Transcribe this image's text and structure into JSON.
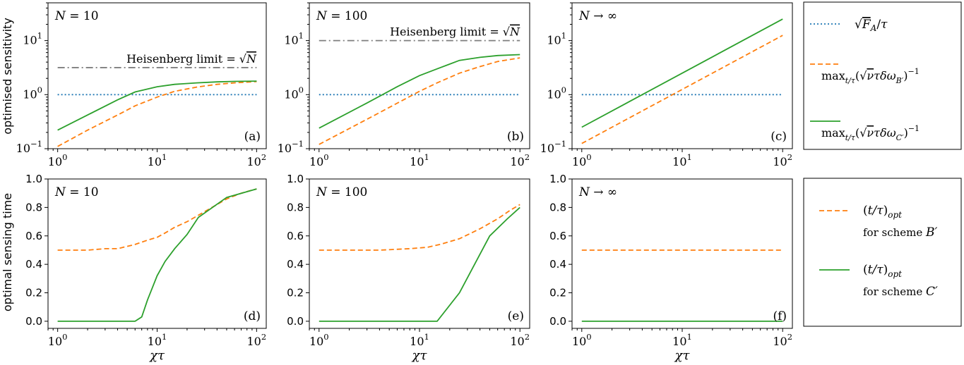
{
  "figure": {
    "ylabel_top": "optimised sensitivity",
    "ylabel_bottom": "optimal sensing time",
    "xlabel": "χτ"
  },
  "colors": {
    "blue": "#1f77b4",
    "orange": "#ff7f0e",
    "green": "#2ca02c",
    "gray": "#7f7f7f",
    "axis": "#000000"
  },
  "legend_top": [
    {
      "key": "sqrtFA",
      "label": "√F_A / τ",
      "style": "dotted",
      "color": "#1f77b4"
    },
    {
      "key": "B",
      "label": "max_{t/τ}(√ν τ δω_{B′})^{-1}",
      "style": "dashed",
      "color": "#ff7f0e"
    },
    {
      "key": "C",
      "label": "max_{t/τ}(√ν τ δω_{C′})^{-1}",
      "style": "solid",
      "color": "#2ca02c"
    }
  ],
  "legend_bottom": [
    {
      "key": "B",
      "line1": "(t/τ)_opt",
      "line2": "for scheme B′",
      "style": "dashed",
      "color": "#ff7f0e"
    },
    {
      "key": "C",
      "line1": "(t/τ)_opt",
      "line2": "for scheme C′",
      "style": "solid",
      "color": "#2ca02c"
    }
  ],
  "chart_data": [
    {
      "panel": "(a)",
      "title": "N = 10",
      "type": "line",
      "xscale": "log",
      "yscale": "log",
      "xlim": [
        0.8,
        125
      ],
      "ylim": [
        0.1,
        50
      ],
      "xticks": [
        1,
        10,
        100
      ],
      "xtick_labels": [
        "10^0",
        "10^1",
        "10^2"
      ],
      "yticks": [
        0.1,
        1,
        10
      ],
      "ytick_labels": [
        "10^-1",
        "10^0",
        "10^1"
      ],
      "ylabel": "optimised sensitivity",
      "hline": {
        "y": 3.162,
        "label": "Heisenberg limit = √N",
        "style": "dashdot"
      },
      "series": [
        {
          "name": "√F_A / τ",
          "style": "dotted",
          "color": "#1f77b4",
          "x": [
            1,
            100
          ],
          "y": [
            1,
            1
          ]
        },
        {
          "name": "scheme B′",
          "style": "dashed",
          "color": "#ff7f0e",
          "x": [
            1,
            2,
            4,
            6,
            10,
            15,
            25,
            40,
            60,
            100
          ],
          "y": [
            0.11,
            0.22,
            0.42,
            0.62,
            0.9,
            1.15,
            1.38,
            1.55,
            1.65,
            1.75
          ]
        },
        {
          "name": "scheme C′",
          "style": "solid",
          "color": "#2ca02c",
          "x": [
            1,
            2,
            4,
            6,
            10,
            15,
            25,
            40,
            60,
            100
          ],
          "y": [
            0.22,
            0.42,
            0.8,
            1.12,
            1.4,
            1.55,
            1.65,
            1.72,
            1.76,
            1.78
          ]
        }
      ]
    },
    {
      "panel": "(b)",
      "title": "N = 100",
      "type": "line",
      "xscale": "log",
      "yscale": "log",
      "xlim": [
        0.8,
        125
      ],
      "ylim": [
        0.1,
        50
      ],
      "xticks": [
        1,
        10,
        100
      ],
      "xtick_labels": [
        "10^0",
        "10^1",
        "10^2"
      ],
      "yticks": [
        0.1,
        1,
        10
      ],
      "ytick_labels": [
        "10^-1",
        "10^0",
        "10^1"
      ],
      "hline": {
        "y": 10,
        "label": "Heisenberg limit = √N",
        "style": "dashdot"
      },
      "series": [
        {
          "name": "√F_A / τ",
          "style": "dotted",
          "color": "#1f77b4",
          "x": [
            1,
            100
          ],
          "y": [
            1,
            1
          ]
        },
        {
          "name": "scheme B′",
          "style": "dashed",
          "color": "#ff7f0e",
          "x": [
            1,
            3,
            10,
            15,
            25,
            40,
            60,
            100
          ],
          "y": [
            0.12,
            0.35,
            1.15,
            1.65,
            2.5,
            3.3,
            4.1,
            4.8
          ]
        },
        {
          "name": "scheme C′",
          "style": "solid",
          "color": "#2ca02c",
          "x": [
            1,
            3,
            6,
            10,
            15,
            25,
            40,
            60,
            100
          ],
          "y": [
            0.24,
            0.7,
            1.4,
            2.25,
            3.0,
            4.3,
            4.9,
            5.3,
            5.5
          ]
        }
      ]
    },
    {
      "panel": "(c)",
      "title": "N → ∞",
      "type": "line",
      "xscale": "log",
      "yscale": "log",
      "xlim": [
        0.8,
        125
      ],
      "ylim": [
        0.1,
        50
      ],
      "xticks": [
        1,
        10,
        100
      ],
      "xtick_labels": [
        "10^0",
        "10^1",
        "10^2"
      ],
      "yticks": [
        0.1,
        1,
        10
      ],
      "ytick_labels": [
        "10^-1",
        "10^0",
        "10^1"
      ],
      "series": [
        {
          "name": "√F_A / τ",
          "style": "dotted",
          "color": "#1f77b4",
          "x": [
            1,
            100
          ],
          "y": [
            1,
            1
          ]
        },
        {
          "name": "scheme B′",
          "style": "dashed",
          "color": "#ff7f0e",
          "x": [
            1,
            100
          ],
          "y": [
            0.125,
            12.5
          ]
        },
        {
          "name": "scheme C′",
          "style": "solid",
          "color": "#2ca02c",
          "x": [
            1,
            100
          ],
          "y": [
            0.25,
            25
          ]
        }
      ]
    },
    {
      "panel": "(d)",
      "title": "N = 10",
      "type": "line",
      "xscale": "log",
      "yscale": "linear",
      "xlim": [
        0.8,
        125
      ],
      "ylim": [
        -0.05,
        1.0
      ],
      "xticks": [
        1,
        10,
        100
      ],
      "xtick_labels": [
        "10^0",
        "10^1",
        "10^2"
      ],
      "yticks": [
        0,
        0.2,
        0.4,
        0.6,
        0.8,
        1.0
      ],
      "ytick_labels": [
        "0.0",
        "0.2",
        "0.4",
        "0.6",
        "0.8",
        "1.0"
      ],
      "xlabel": "χτ",
      "ylabel": "optimal sensing time",
      "series": [
        {
          "name": "scheme B′",
          "style": "dashed",
          "color": "#ff7f0e",
          "x": [
            1,
            2,
            3,
            4,
            6,
            8,
            10,
            12,
            15,
            20,
            30,
            50,
            70,
            100
          ],
          "y": [
            0.5,
            0.5,
            0.51,
            0.51,
            0.54,
            0.57,
            0.59,
            0.62,
            0.66,
            0.7,
            0.77,
            0.86,
            0.9,
            0.93
          ]
        },
        {
          "name": "scheme C′",
          "style": "solid",
          "color": "#2ca02c",
          "x": [
            1,
            6,
            7,
            8,
            9,
            10,
            12,
            15,
            20,
            26,
            50,
            100
          ],
          "y": [
            0,
            0,
            0.03,
            0.15,
            0.24,
            0.32,
            0.42,
            0.51,
            0.61,
            0.73,
            0.87,
            0.93
          ]
        }
      ]
    },
    {
      "panel": "(e)",
      "title": "N = 100",
      "type": "line",
      "xscale": "log",
      "yscale": "linear",
      "xlim": [
        0.8,
        125
      ],
      "ylim": [
        -0.05,
        1.0
      ],
      "xticks": [
        1,
        10,
        100
      ],
      "xtick_labels": [
        "10^0",
        "10^1",
        "10^2"
      ],
      "yticks": [
        0,
        0.2,
        0.4,
        0.6,
        0.8,
        1.0
      ],
      "ytick_labels": [
        "0.0",
        "0.2",
        "0.4",
        "0.6",
        "0.8",
        "1.0"
      ],
      "xlabel": "χτ",
      "series": [
        {
          "name": "scheme B′",
          "style": "dashed",
          "color": "#ff7f0e",
          "x": [
            1,
            4,
            8,
            12,
            16,
            25,
            40,
            60,
            80,
            100
          ],
          "y": [
            0.5,
            0.5,
            0.51,
            0.52,
            0.54,
            0.58,
            0.65,
            0.72,
            0.78,
            0.82
          ]
        },
        {
          "name": "scheme C′",
          "style": "solid",
          "color": "#2ca02c",
          "x": [
            1,
            15,
            25,
            50,
            75,
            100
          ],
          "y": [
            0,
            0,
            0.2,
            0.6,
            0.72,
            0.8
          ]
        }
      ]
    },
    {
      "panel": "(f)",
      "title": "N → ∞",
      "type": "line",
      "xscale": "log",
      "yscale": "linear",
      "xlim": [
        0.8,
        125
      ],
      "ylim": [
        -0.05,
        1.0
      ],
      "xticks": [
        1,
        10,
        100
      ],
      "xtick_labels": [
        "10^0",
        "10^1",
        "10^2"
      ],
      "yticks": [
        0,
        0.2,
        0.4,
        0.6,
        0.8,
        1.0
      ],
      "ytick_labels": [
        "0.0",
        "0.2",
        "0.4",
        "0.6",
        "0.8",
        "1.0"
      ],
      "xlabel": "χτ",
      "series": [
        {
          "name": "scheme B′",
          "style": "dashed",
          "color": "#ff7f0e",
          "x": [
            1,
            100
          ],
          "y": [
            0.5,
            0.5
          ]
        },
        {
          "name": "scheme C′",
          "style": "solid",
          "color": "#2ca02c",
          "x": [
            1,
            100
          ],
          "y": [
            0,
            0
          ]
        }
      ]
    }
  ]
}
